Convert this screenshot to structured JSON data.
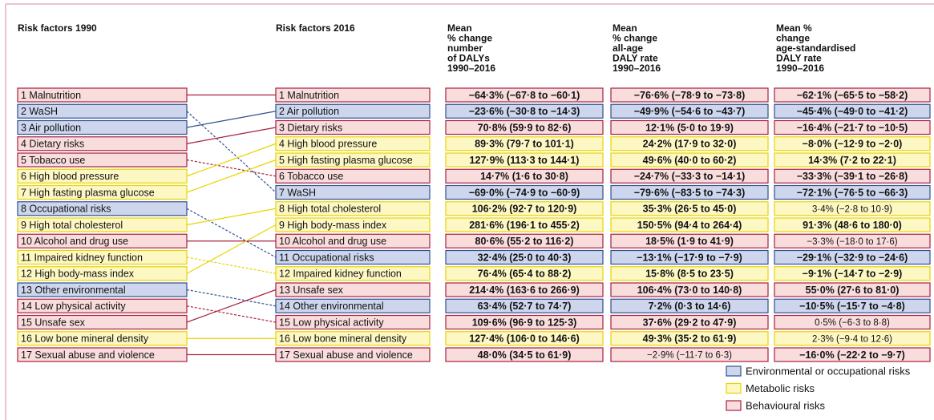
{
  "legend": [
    {
      "label": "Environmental or occupational risks",
      "fill": "#cdd6ec",
      "stroke": "#2f4f8f"
    },
    {
      "label": "Metabolic risks",
      "fill": "#fdf7c4",
      "stroke": "#e6d500"
    },
    {
      "label": "Behavioural risks",
      "fill": "#f9dcdc",
      "stroke": "#a8203f"
    }
  ],
  "headers": {
    "left": "Risk factors 1990",
    "right": "Risk factors 2016",
    "columns": [
      [
        "Mean",
        "% change",
        "number",
        "of DALYs",
        "1990–2016"
      ],
      [
        "Mean",
        "% change",
        "all-age",
        "DALY rate",
        "1990–2016"
      ],
      [
        "Mean %",
        "change",
        "age-standardised",
        "DALY rate",
        "1990–2016"
      ]
    ]
  },
  "rows_1990": [
    {
      "label": "1 Malnutrition",
      "group": 2
    },
    {
      "label": "2 WaSH",
      "group": 0
    },
    {
      "label": "3 Air pollution",
      "group": 0
    },
    {
      "label": "4 Dietary risks",
      "group": 2
    },
    {
      "label": "5 Tobacco use",
      "group": 2
    },
    {
      "label": "6 High blood pressure",
      "group": 1
    },
    {
      "label": "7 High fasting plasma glucose",
      "group": 1
    },
    {
      "label": "8 Occupational risks",
      "group": 0
    },
    {
      "label": "9 High total cholesterol",
      "group": 1
    },
    {
      "label": "10 Alcohol and drug use",
      "group": 2
    },
    {
      "label": "11 Impaired kidney function",
      "group": 1
    },
    {
      "label": "12 High body-mass index",
      "group": 1
    },
    {
      "label": "13 Other environmental",
      "group": 0
    },
    {
      "label": "14 Low physical activity",
      "group": 2
    },
    {
      "label": "15 Unsafe sex",
      "group": 2
    },
    {
      "label": "16 Low bone mineral density",
      "group": 1
    },
    {
      "label": "17 Sexual abuse and violence",
      "group": 2
    }
  ],
  "rows_2016": [
    {
      "label": "1 Malnutrition",
      "group": 2,
      "cells": [
        {
          "text": "−64·3% (−67·8 to −60·1)",
          "bold": true
        },
        {
          "text": "−76·6% (−78·9 to −73·8)",
          "bold": true
        },
        {
          "text": "−62·1% (−65·5 to −58·2)",
          "bold": true
        }
      ]
    },
    {
      "label": "2 Air pollution",
      "group": 0,
      "cells": [
        {
          "text": "−23·6% (−30·8 to −14·3)",
          "bold": true
        },
        {
          "text": "−49·9% (−54·6 to −43·7)",
          "bold": true
        },
        {
          "text": "−45·4% (−49·0 to −41·2)",
          "bold": true
        }
      ]
    },
    {
      "label": "3 Dietary risks",
      "group": 2,
      "cells": [
        {
          "text": "70·8% (59·9 to 82·6)",
          "bold": true
        },
        {
          "text": "12·1% (5·0 to 19·9)",
          "bold": true
        },
        {
          "text": "−16·4% (−21·7 to −10·5)",
          "bold": true
        }
      ]
    },
    {
      "label": "4 High blood pressure",
      "group": 1,
      "cells": [
        {
          "text": "89·3% (79·7 to 101·1)",
          "bold": true
        },
        {
          "text": "24·2% (17·9 to 32·0)",
          "bold": true
        },
        {
          "text": "−8·0% (−12·9 to −2·0)",
          "bold": true
        }
      ]
    },
    {
      "label": "5 High fasting plasma glucose",
      "group": 1,
      "cells": [
        {
          "text": "127·9% (113·3 to 144·1)",
          "bold": true
        },
        {
          "text": "49·6% (40·0 to 60·2)",
          "bold": true
        },
        {
          "text": "14·3% (7·2 to 22·1)",
          "bold": true
        }
      ]
    },
    {
      "label": "6 Tobacco use",
      "group": 2,
      "cells": [
        {
          "text": "14·7% (1·6 to 30·8)",
          "bold": true
        },
        {
          "text": "−24·7% (−33·3 to −14·1)",
          "bold": true
        },
        {
          "text": "−33·3% (−39·1 to −26·8)",
          "bold": true
        }
      ]
    },
    {
      "label": "7 WaSH",
      "group": 0,
      "cells": [
        {
          "text": "−69·0% (−74·9 to −60·9)",
          "bold": true
        },
        {
          "text": "−79·6% (−83·5 to −74·3)",
          "bold": true
        },
        {
          "text": "−72·1% (−76·5 to −66·3)",
          "bold": true
        }
      ]
    },
    {
      "label": "8 High total cholesterol",
      "group": 1,
      "cells": [
        {
          "text": "106·2% (92·7 to 120·9)",
          "bold": true
        },
        {
          "text": "35·3% (26·5 to 45·0)",
          "bold": true
        },
        {
          "text": "3·4% (−2·8 to 10·9)",
          "bold": false
        }
      ]
    },
    {
      "label": "9 High body-mass index",
      "group": 1,
      "cells": [
        {
          "text": "281·6% (196·1 to 455·2)",
          "bold": true
        },
        {
          "text": "150·5% (94·4 to 264·4)",
          "bold": true
        },
        {
          "text": "91·3% (48·6 to 180·0)",
          "bold": true
        }
      ]
    },
    {
      "label": "10 Alcohol and drug use",
      "group": 2,
      "cells": [
        {
          "text": "80·6% (55·2 to 116·2)",
          "bold": true
        },
        {
          "text": "18·5% (1·9 to 41·9)",
          "bold": true
        },
        {
          "text": "−3·3% (−18·0 to 17·6)",
          "bold": false
        }
      ]
    },
    {
      "label": "11 Occupational risks",
      "group": 0,
      "cells": [
        {
          "text": "32·4% (25·0 to 40·3)",
          "bold": true
        },
        {
          "text": "−13·1% (−17·9 to −7·9)",
          "bold": true
        },
        {
          "text": "−29·1% (−32·9 to −24·6)",
          "bold": true
        }
      ]
    },
    {
      "label": "12 Impaired kidney function",
      "group": 1,
      "cells": [
        {
          "text": "76·4% (65·4 to 88·2)",
          "bold": true
        },
        {
          "text": "15·8% (8·5 to 23·5)",
          "bold": true
        },
        {
          "text": "−9·1% (−14·7 to −2·9)",
          "bold": true
        }
      ]
    },
    {
      "label": "13 Unsafe sex",
      "group": 2,
      "cells": [
        {
          "text": "214·4% (163·6 to 266·9)",
          "bold": true
        },
        {
          "text": "106·4% (73·0 to 140·8)",
          "bold": true
        },
        {
          "text": "55·0% (27·6 to 81·0)",
          "bold": true
        }
      ]
    },
    {
      "label": "14 Other environmental",
      "group": 0,
      "cells": [
        {
          "text": "63·4% (52·7 to 74·7)",
          "bold": true
        },
        {
          "text": "7·2% (0·3 to 14·6)",
          "bold": true
        },
        {
          "text": "−10·5% (−15·7 to −4·8)",
          "bold": true
        }
      ]
    },
    {
      "label": "15 Low physical activity",
      "group": 2,
      "cells": [
        {
          "text": "109·6% (96·9 to 125·3)",
          "bold": true
        },
        {
          "text": "37·6% (29·2 to 47·9)",
          "bold": true
        },
        {
          "text": "0·5% (−6·3 to 8·8)",
          "bold": false
        }
      ]
    },
    {
      "label": "16 Low bone mineral density",
      "group": 1,
      "cells": [
        {
          "text": "127·4% (106·0 to 146·6)",
          "bold": true
        },
        {
          "text": "49·3% (35·2 to 61·9)",
          "bold": true
        },
        {
          "text": "2·3% (−9·4 to 12·6)",
          "bold": false
        }
      ]
    },
    {
      "label": "17 Sexual abuse and violence",
      "group": 2,
      "cells": [
        {
          "text": "48·0% (34·5 to 61·9)",
          "bold": true
        },
        {
          "text": "−2·9% (−11·7 to 6·3)",
          "bold": false
        },
        {
          "text": "−16·0% (−22·2 to −9·7)",
          "bold": true
        }
      ]
    }
  ]
}
